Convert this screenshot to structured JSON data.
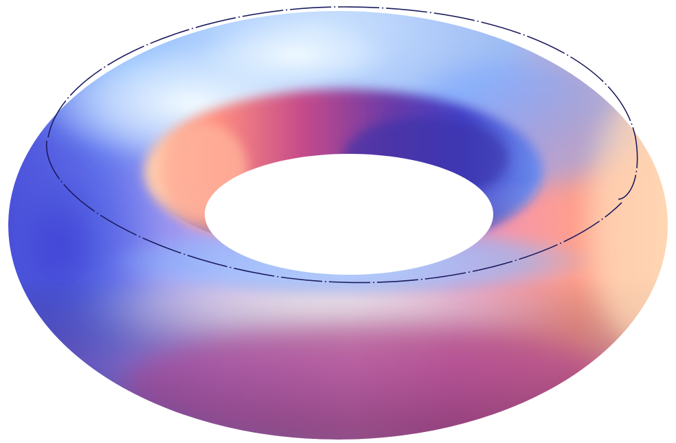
{
  "figure": {
    "kind": "shaded 3D torus surface",
    "surface_colors": {
      "light_blue": "#b8dcff",
      "sky_blue": "#7cb6ff",
      "highlight": "#ffffff",
      "blue_violet": "#5a5ae6",
      "deep_indigo": "#2e2a8c",
      "violet": "#b48ce8",
      "pink": "#f2a8e0",
      "rose": "#e86aa6",
      "magenta": "#b03a86",
      "salmon": "#ff8e84",
      "peach": "#ffc9a8",
      "hole_shadow": "#4a2a72"
    },
    "curve": {
      "style": "dashed",
      "color": "#1a1a5e",
      "description_visible": false
    },
    "background": "#ffffff"
  }
}
